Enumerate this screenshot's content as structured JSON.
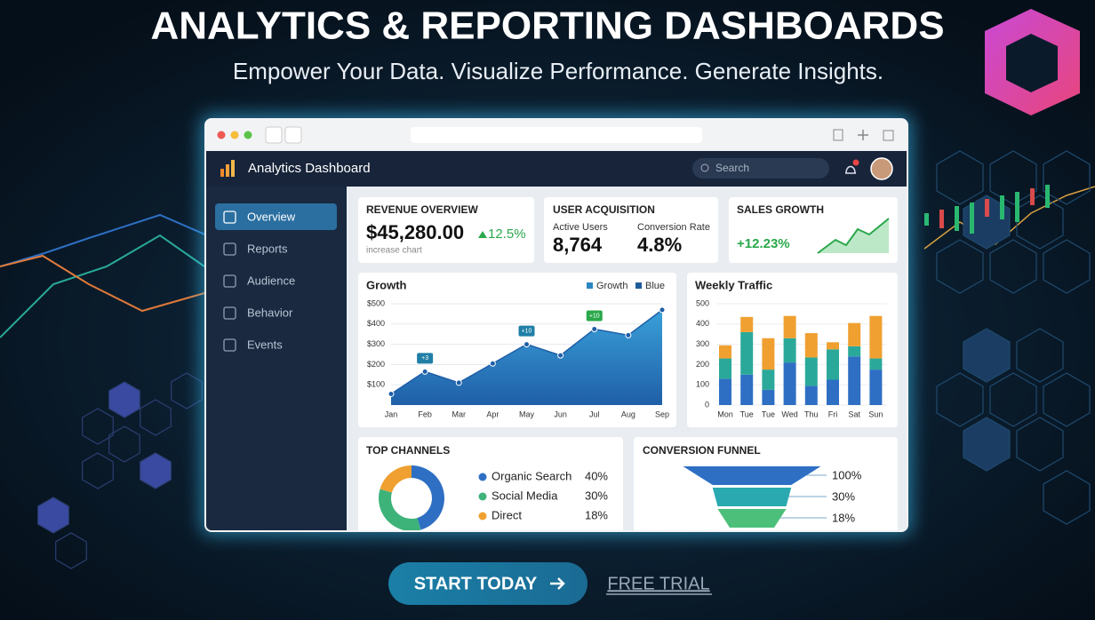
{
  "header": {
    "title": "ANALYTICS & REPORTING DASHBOARDS",
    "subtitle": "Empower Your Data. Visualize Performance. Generate Insights."
  },
  "app": {
    "title": "Analytics Dashboard",
    "search": "Search"
  },
  "sidebar": {
    "items": [
      "Overview",
      "Reports",
      "Audience",
      "Behavior",
      "Events"
    ]
  },
  "cards": {
    "revenue": {
      "title": "REVENUE OVERVIEW",
      "value": "$45,280.00",
      "change": "12.5%",
      "caption": "increase chart"
    },
    "users": {
      "title": "USER ACQUISITION",
      "active_label": "Active Users",
      "active_value": "8,764",
      "conversion_label": "Conversion Rate",
      "conversion_value": "4.8%"
    },
    "sales": {
      "title": "SALES GROWTH",
      "change": "+12.23%"
    }
  },
  "growth_chart": {
    "type": "area",
    "title": "Growth",
    "legend": [
      {
        "name": "Growth",
        "color": "#2d86c4"
      },
      {
        "name": "Blue",
        "color": "#1f5a9a"
      }
    ],
    "categories": [
      "Jan",
      "Feb",
      "Mar",
      "Apr",
      "May",
      "Jun",
      "Jul",
      "Aug",
      "Sep"
    ],
    "values": [
      55,
      165,
      110,
      205,
      300,
      245,
      375,
      345,
      470
    ],
    "color": "#2d86c4",
    "ylim": [
      0,
      500
    ],
    "yticks": [
      {
        "value": 100,
        "label": "$100"
      },
      {
        "value": 200,
        "label": "$200"
      },
      {
        "value": 300,
        "label": "$300"
      },
      {
        "value": 400,
        "label": "$400"
      },
      {
        "value": 500,
        "label": "$500"
      }
    ],
    "annotations": [
      {
        "x": "Feb",
        "text": "+3"
      },
      {
        "x": "May",
        "text": "+10"
      },
      {
        "x": "Jul",
        "text": "+10"
      }
    ]
  },
  "traffic_chart": {
    "type": "stacked_bar",
    "title": "Weekly Traffic",
    "categories": [
      "Mon",
      "Tue",
      "Tue",
      "Wed",
      "Thu",
      "Fri",
      "Sat",
      "Sun"
    ],
    "ylim": [
      0,
      500
    ],
    "yticks": [
      0,
      100,
      200,
      300,
      400,
      500
    ],
    "series": [
      {
        "color": "#2e6fc4",
        "values": [
          130,
          150,
          75,
          210,
          95,
          125,
          240,
          175
        ]
      },
      {
        "color": "#2aa99a",
        "values": [
          100,
          210,
          100,
          120,
          140,
          150,
          50,
          55
        ]
      },
      {
        "color": "#f0a030",
        "values": [
          65,
          75,
          155,
          110,
          120,
          35,
          115,
          210
        ]
      }
    ]
  },
  "channels_chart": {
    "type": "donut",
    "title": "TOP CHANNELS",
    "categories": [
      "Organic Search",
      "Social Media",
      "Direct"
    ],
    "values": [
      40,
      30,
      18
    ],
    "value_labels": [
      "40%",
      "30%",
      "18%"
    ],
    "colors": [
      "#2e6fc4",
      "#3db37a",
      "#f0a030"
    ]
  },
  "funnel_chart": {
    "type": "funnel",
    "title": "CONVERSION FUNNEL",
    "values": [
      100,
      30,
      18
    ],
    "value_labels": [
      "100%",
      "30%",
      "18%"
    ],
    "colors": [
      "#2e6fc4",
      "#2aa9b0",
      "#4cc07a"
    ]
  },
  "cta": {
    "primary": "START TODAY",
    "secondary": "FREE TRIAL"
  }
}
